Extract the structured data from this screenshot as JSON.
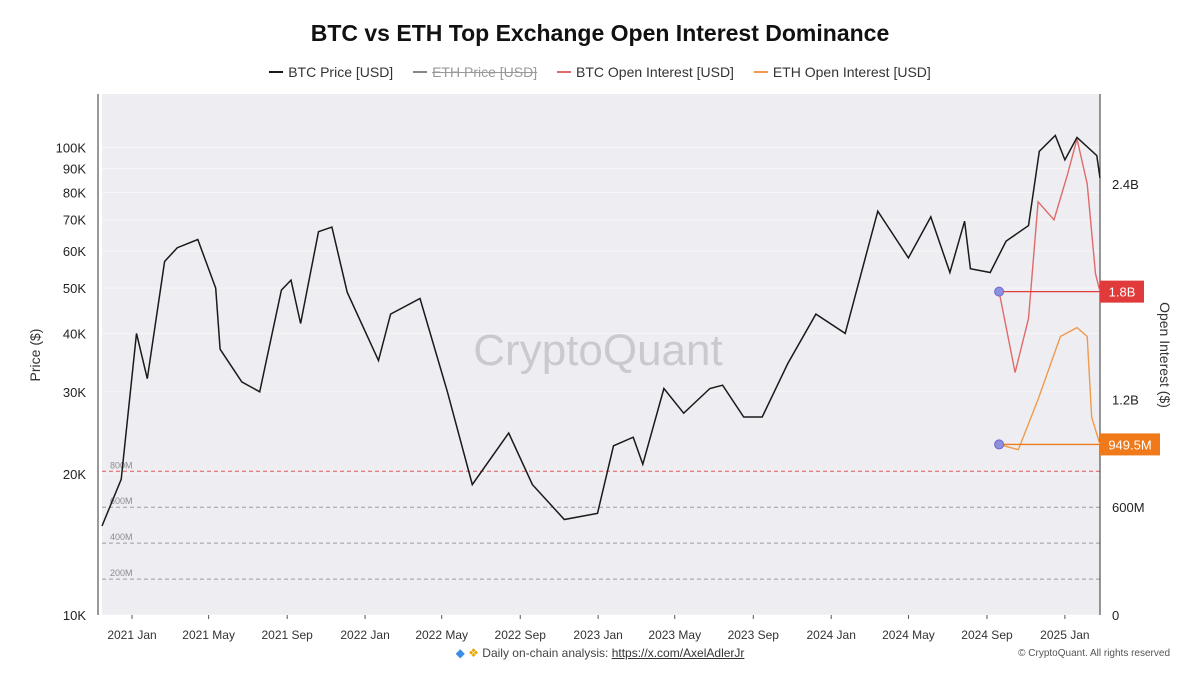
{
  "chart_data": {
    "type": "line",
    "title": "BTC vs ETH Top Exchange Open Interest Dominance",
    "legend": [
      {
        "name": "BTC Price [USD]",
        "color": "#1a1a1a",
        "enabled": true
      },
      {
        "name": "ETH Price [USD]",
        "color": "#888888",
        "enabled": false
      },
      {
        "name": "BTC Open Interest [USD]",
        "color": "#e06a6a",
        "enabled": true
      },
      {
        "name": "ETH Open Interest [USD]",
        "color": "#ef9a4c",
        "enabled": true
      }
    ],
    "ylabel_left": "Price ($)",
    "ylabel_right": "Open Interest ($)",
    "y_left_scale": "log",
    "y_left_range": [
      10000,
      130000
    ],
    "y_left_ticks": [
      "100K",
      "90K",
      "80K",
      "70K",
      "60K",
      "50K",
      "40K",
      "30K",
      "20K",
      "10K"
    ],
    "y_right_range": [
      0,
      2900000000
    ],
    "y_right_ticks": [
      "2.4B",
      "1.8B",
      "1.2B",
      "600M",
      "0"
    ],
    "x_range": [
      "2020-11-15",
      "2025-02-25"
    ],
    "x_ticks": [
      "2021 Jan",
      "2021 May",
      "2021 Sep",
      "2022 Jan",
      "2022 May",
      "2022 Sep",
      "2023 Jan",
      "2023 May",
      "2023 Sep",
      "2024 Jan",
      "2024 May",
      "2024 Sep",
      "2025 Jan"
    ],
    "threshold_labels": [
      "800M",
      "600M",
      "400M",
      "200M"
    ],
    "annotations": [
      {
        "label": "1.8B",
        "value": 1800000000,
        "color": "#e03a3a"
      },
      {
        "label": "949.5M",
        "value": 949500000,
        "color": "#f07a1a"
      }
    ],
    "watermark": "CryptoQuant",
    "btc_price": [
      [
        "2020-11-15",
        15500
      ],
      [
        "2020-12-15",
        19500
      ],
      [
        "2021-01-08",
        40000
      ],
      [
        "2021-01-25",
        32000
      ],
      [
        "2021-02-21",
        57000
      ],
      [
        "2021-03-13",
        61000
      ],
      [
        "2021-04-14",
        63500
      ],
      [
        "2021-05-12",
        50000
      ],
      [
        "2021-05-19",
        37000
      ],
      [
        "2021-06-22",
        31500
      ],
      [
        "2021-07-20",
        30000
      ],
      [
        "2021-08-23",
        49500
      ],
      [
        "2021-09-07",
        52000
      ],
      [
        "2021-09-22",
        42000
      ],
      [
        "2021-10-20",
        66000
      ],
      [
        "2021-11-10",
        67500
      ],
      [
        "2021-12-04",
        49000
      ],
      [
        "2022-01-22",
        35000
      ],
      [
        "2022-02-10",
        44000
      ],
      [
        "2022-03-28",
        47500
      ],
      [
        "2022-05-10",
        30000
      ],
      [
        "2022-06-18",
        19000
      ],
      [
        "2022-08-14",
        24500
      ],
      [
        "2022-09-20",
        19000
      ],
      [
        "2022-11-09",
        16000
      ],
      [
        "2022-12-31",
        16500
      ],
      [
        "2023-01-25",
        23000
      ],
      [
        "2023-02-25",
        24000
      ],
      [
        "2023-03-12",
        21000
      ],
      [
        "2023-04-14",
        30500
      ],
      [
        "2023-05-15",
        27000
      ],
      [
        "2023-06-25",
        30500
      ],
      [
        "2023-07-15",
        31000
      ],
      [
        "2023-08-17",
        26500
      ],
      [
        "2023-09-15",
        26500
      ],
      [
        "2023-10-25",
        34500
      ],
      [
        "2023-12-08",
        44000
      ],
      [
        "2024-01-23",
        40000
      ],
      [
        "2024-02-29",
        62000
      ],
      [
        "2024-03-14",
        73000
      ],
      [
        "2024-05-01",
        58000
      ],
      [
        "2024-06-05",
        71000
      ],
      [
        "2024-07-05",
        54000
      ],
      [
        "2024-07-28",
        69500
      ],
      [
        "2024-08-06",
        55000
      ],
      [
        "2024-09-06",
        54000
      ],
      [
        "2024-10-01",
        63000
      ],
      [
        "2024-11-05",
        68000
      ],
      [
        "2024-11-22",
        98000
      ],
      [
        "2024-12-17",
        106000
      ],
      [
        "2025-01-01",
        94000
      ],
      [
        "2025-01-20",
        105000
      ],
      [
        "2025-02-20",
        96000
      ],
      [
        "2025-02-25",
        86000
      ]
    ],
    "btc_open_interest": [
      [
        "2024-09-20",
        1800000000
      ],
      [
        "2024-10-15",
        1350000000
      ],
      [
        "2024-11-05",
        1650000000
      ],
      [
        "2024-11-20",
        2300000000
      ],
      [
        "2024-12-15",
        2200000000
      ],
      [
        "2025-01-05",
        2450000000
      ],
      [
        "2025-01-20",
        2650000000
      ],
      [
        "2025-02-05",
        2400000000
      ],
      [
        "2025-02-18",
        1900000000
      ],
      [
        "2025-02-25",
        1800000000
      ]
    ],
    "eth_open_interest": [
      [
        "2024-09-20",
        949500000
      ],
      [
        "2024-10-20",
        920000000
      ],
      [
        "2024-11-20",
        1200000000
      ],
      [
        "2024-12-10",
        1400000000
      ],
      [
        "2024-12-25",
        1550000000
      ],
      [
        "2025-01-20",
        1600000000
      ],
      [
        "2025-02-05",
        1550000000
      ],
      [
        "2025-02-12",
        1100000000
      ],
      [
        "2025-02-25",
        949500000
      ]
    ]
  },
  "footer": {
    "note": "Daily on-chain analysis:",
    "link": "https://x.com/AxelAdlerJr",
    "copyright": "© CryptoQuant. All rights reserved"
  }
}
